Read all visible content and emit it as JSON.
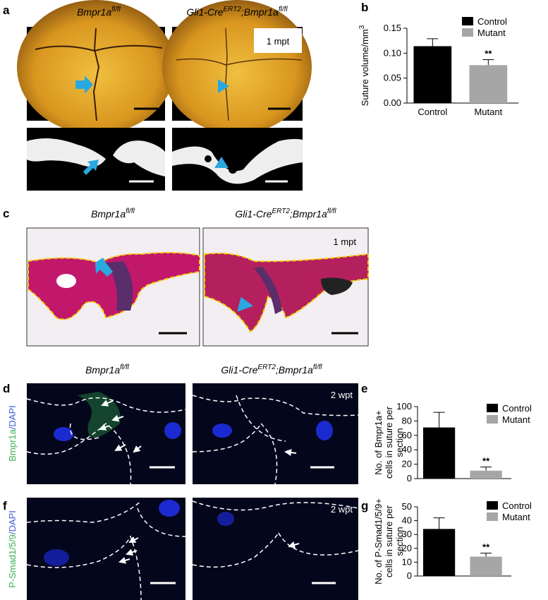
{
  "figure": {
    "panel_letters": [
      "a",
      "b",
      "c",
      "d",
      "e",
      "f",
      "g"
    ],
    "control_genotype": {
      "gene": "Bmpr1a",
      "sup": "fl/fl"
    },
    "mutant_genotype": {
      "driver": "Gli1-Cre",
      "driver_sup": "ERT2",
      "gene": ";Bmpr1a",
      "sup": "fl/fl"
    },
    "timepoints": [
      "1 mpt",
      "1 mpt",
      "2 wpt",
      "2 wpt"
    ],
    "stain_d": {
      "marker": "Bmpr1a",
      "dapi": "/DAPI"
    },
    "stain_f": {
      "marker": "P-Smad1/5/9",
      "dapi": "/DAPI"
    }
  },
  "chart_data": [
    {
      "type": "bar",
      "ylabel": "Suture volume/mm",
      "ylabel_sup": "3",
      "categories": [
        "Control",
        "Mutant"
      ],
      "legend": [
        "Control",
        "Mutant"
      ],
      "values": [
        0.114,
        0.076
      ],
      "errors": [
        0.015,
        0.011
      ],
      "colors": [
        "#000000",
        "#a6a6a6"
      ],
      "significance": "**",
      "ylim": [
        0,
        0.15
      ],
      "yticks": [
        {
          "value": 0,
          "label": "0.00"
        },
        {
          "value": 0.05,
          "label": "0.05"
        },
        {
          "value": 0.1,
          "label": "0.10"
        },
        {
          "value": 0.15,
          "label": "0.15"
        }
      ]
    },
    {
      "type": "bar",
      "ylabel_lines": [
        "No. of Bmpr1a+",
        "cells in suture per",
        "section"
      ],
      "categories": [
        null,
        null
      ],
      "legend": [
        "Control",
        "Mutant"
      ],
      "values": [
        71,
        11
      ],
      "errors": [
        21,
        5
      ],
      "colors": [
        "#000000",
        "#a6a6a6"
      ],
      "significance": "**",
      "ylim": [
        0,
        100
      ],
      "yticks": [
        0,
        20,
        40,
        60,
        80,
        100
      ]
    },
    {
      "type": "bar",
      "ylabel_lines": [
        "No. of P-Smad1/5/9+",
        "cells in suture per",
        "section"
      ],
      "categories": [
        null,
        null
      ],
      "legend": [
        "Control",
        "Mutant"
      ],
      "values": [
        34,
        14
      ],
      "errors": [
        8,
        2.5
      ],
      "colors": [
        "#000000",
        "#a6a6a6"
      ],
      "significance": "**",
      "ylim": [
        0,
        50
      ],
      "yticks": [
        0,
        10,
        20,
        30,
        40,
        50
      ]
    }
  ]
}
